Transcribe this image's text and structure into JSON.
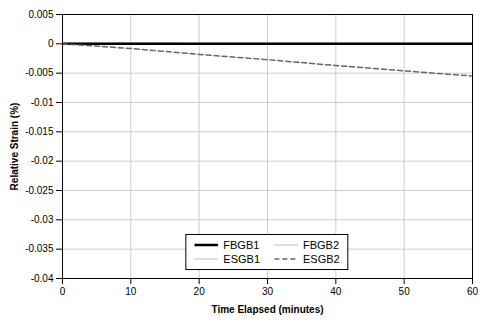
{
  "chart_data": {
    "type": "line",
    "x": [
      0,
      10,
      20,
      30,
      40,
      50,
      60
    ],
    "series": [
      {
        "name": "FBGB1",
        "color": "#000000",
        "line_style": "solid",
        "values": [
          0.0,
          0.0,
          0.0,
          0.0,
          0.0,
          0.0,
          0.0
        ]
      },
      {
        "name": "FBGB2",
        "color": "#bbbbbb",
        "line_style": "solid",
        "values": [
          0.0001,
          0.0001,
          0.0001,
          0.0001,
          0.0001,
          0.0001,
          0.0001
        ]
      },
      {
        "name": "ESGB1",
        "color": "#bbbbbb",
        "line_style": "solid",
        "values": [
          0.0001,
          8e-05,
          6e-05,
          3e-05,
          0.0,
          -3e-05,
          -6e-05
        ]
      },
      {
        "name": "ESGB2",
        "color": "#666666",
        "line_style": "dashed",
        "values": [
          0.0,
          -0.0008,
          -0.0018,
          -0.0027,
          -0.0037,
          -0.0046,
          -0.0055
        ]
      }
    ],
    "xlim": [
      0,
      60
    ],
    "ylim": [
      -0.04,
      0.005
    ],
    "xticks": [
      0,
      10,
      20,
      30,
      40,
      50,
      60
    ],
    "yticks": [
      0.005,
      0,
      -0.005,
      -0.01,
      -0.015,
      -0.02,
      -0.025,
      -0.03,
      -0.035,
      -0.04
    ],
    "xlabel": "Time Elapsed (minutes)",
    "ylabel": "Relative Strain (%)",
    "grid": true,
    "legend": "lower center"
  }
}
